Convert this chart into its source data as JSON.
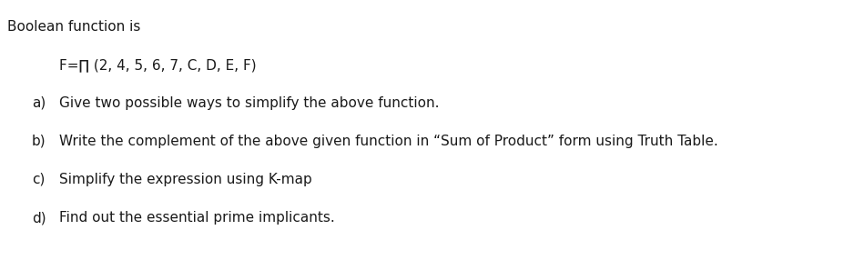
{
  "background_color": "#ffffff",
  "title_text": "Boolean function is",
  "formula_text": "F=∏ (2, 4, 5, 6, 7, C, D, E, F)",
  "lines": [
    {
      "label": "a)",
      "text": "Give two possible ways to simplify the above function."
    },
    {
      "label": "b)",
      "text": "Write the complement of the above given function in “Sum of Product” form using Truth Table."
    },
    {
      "label": "c)",
      "text": "Simplify the expression using K-map"
    },
    {
      "label": "d)",
      "text": "Find out the essential prime implicants."
    }
  ],
  "fontsize": 11.0,
  "font_family": "DejaVu Sans",
  "text_color": "#1a1a1a"
}
